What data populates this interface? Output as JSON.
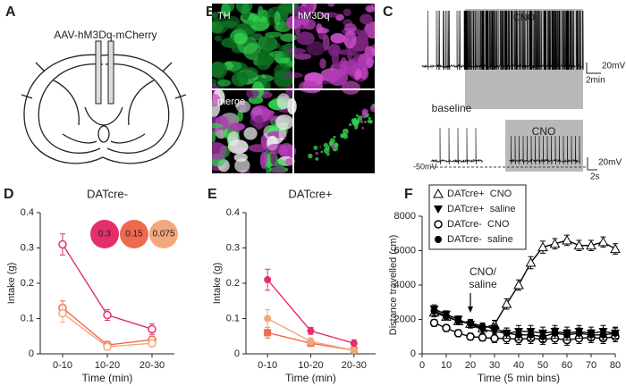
{
  "panels": {
    "a": {
      "letter": "A",
      "label": "AAV-hM3Dq-mCherry"
    },
    "b": {
      "letter": "B",
      "labels": [
        "TH",
        "hM3Dq",
        "merge"
      ]
    },
    "c": {
      "letter": "C",
      "top_box": "CNO",
      "top_scale_v": "20mV",
      "top_scale_t": "2min",
      "baseline": "baseline",
      "bottom_box": "CNO",
      "rest": "-50mV",
      "bottom_scale_v": "20mV",
      "bottom_scale_t": "2s"
    },
    "d": {
      "letter": "D"
    },
    "e": {
      "letter": "E"
    },
    "f": {
      "letter": "F"
    }
  },
  "chart_data": [
    {
      "type": "line",
      "title": "DATcre-",
      "x_label": "Time (min)",
      "y_label": "Intake (g)",
      "categories": [
        "0-10",
        "10-20",
        "20-30"
      ],
      "ylim": [
        0,
        0.4
      ],
      "yticks": [
        0,
        0.1,
        0.2,
        0.3,
        0.4
      ],
      "legend": "top-right",
      "legend_style": "bubbles",
      "series": [
        {
          "name": "0.3",
          "color": "#e4306a",
          "marker": "circle-open",
          "values": [
            0.31,
            0.11,
            0.07
          ],
          "errors": [
            0.03,
            0.015,
            0.015
          ]
        },
        {
          "name": "0.15",
          "color": "#ee6a4f",
          "marker": "circle-open",
          "values": [
            0.13,
            0.025,
            0.04
          ],
          "errors": [
            0.02,
            0.01,
            0.01
          ]
        },
        {
          "name": "0.075",
          "color": "#f4a67c",
          "marker": "circle-open",
          "values": [
            0.115,
            0.02,
            0.03
          ],
          "errors": [
            0.025,
            0.008,
            0.01
          ]
        }
      ]
    },
    {
      "type": "line",
      "title": "DATcre+",
      "x_label": "Time (min)",
      "y_label": "Intake (g)",
      "categories": [
        "0-10",
        "10-20",
        "20-30"
      ],
      "ylim": [
        0,
        0.4
      ],
      "yticks": [
        0,
        0.1,
        0.2,
        0.3,
        0.4
      ],
      "series": [
        {
          "color": "#e4306a",
          "marker": "circle",
          "values": [
            0.21,
            0.065,
            0.03
          ],
          "errors": [
            0.03,
            0.01,
            0.01
          ]
        },
        {
          "color": "#ee6a4f",
          "marker": "square",
          "values": [
            0.06,
            0.03,
            0.01
          ],
          "errors": [
            0.015,
            0.008,
            0.005
          ]
        },
        {
          "color": "#f4a67c",
          "marker": "circle",
          "values": [
            0.1,
            0.035,
            0.01
          ],
          "errors": [
            0.025,
            0.01,
            0.005
          ]
        }
      ]
    },
    {
      "type": "line",
      "x_label": "Time (5 min bins)",
      "y_label": "Distance travelled (cm)",
      "x": [
        5,
        10,
        15,
        20,
        25,
        30,
        35,
        40,
        45,
        50,
        55,
        60,
        65,
        70,
        75,
        80
      ],
      "xlim": [
        0,
        80
      ],
      "xticks": [
        0,
        10,
        20,
        30,
        40,
        50,
        60,
        70,
        80
      ],
      "ylim": [
        0,
        8000
      ],
      "yticks": [
        0,
        2000,
        4000,
        6000,
        8000
      ],
      "legend": "top-left",
      "legend_style": "box",
      "annotation": {
        "lines": [
          "CNO/",
          "saline"
        ],
        "x": 20
      },
      "series": [
        {
          "name": "DATcre+  CNO",
          "color": "#000000",
          "marker": "triangle-open",
          "values": [
            2400,
            2150,
            1900,
            1750,
            1500,
            1700,
            2900,
            4000,
            5300,
            6200,
            6400,
            6600,
            6300,
            6300,
            6500,
            6100
          ],
          "errors": [
            250,
            200,
            200,
            200,
            200,
            250,
            300,
            300,
            350,
            350,
            300,
            300,
            300,
            300,
            300,
            300
          ]
        },
        {
          "name": "DATcre+  saline",
          "color": "#000000",
          "marker": "triangle-down",
          "values": [
            2600,
            2300,
            2000,
            1700,
            1400,
            1300,
            1200,
            1300,
            1300,
            1200,
            1300,
            1200,
            1300,
            1200,
            1300,
            1200
          ],
          "errors": [
            250,
            200,
            200,
            200,
            200,
            250,
            300,
            350,
            350,
            350,
            350,
            350,
            350,
            350,
            350,
            350
          ]
        },
        {
          "name": "DATcre-  CNO",
          "color": "#000000",
          "marker": "circle-open",
          "values": [
            1800,
            1500,
            1200,
            1000,
            950,
            900,
            900,
            850,
            900,
            850,
            900,
            800,
            900,
            950,
            900,
            1000
          ],
          "errors": [
            200,
            200,
            200,
            200,
            200,
            250,
            300,
            300,
            300,
            300,
            300,
            300,
            300,
            300,
            300,
            300
          ]
        },
        {
          "name": "DATcre-  saline",
          "color": "#000000",
          "marker": "circle",
          "values": [
            2500,
            2200,
            1900,
            1800,
            1600,
            1500,
            1200,
            1100,
            1100,
            1000,
            1200,
            1100,
            1200,
            1100,
            1100,
            1200
          ],
          "errors": [
            250,
            200,
            200,
            200,
            200,
            250,
            300,
            300,
            300,
            300,
            300,
            300,
            300,
            300,
            300,
            300
          ]
        }
      ]
    }
  ]
}
